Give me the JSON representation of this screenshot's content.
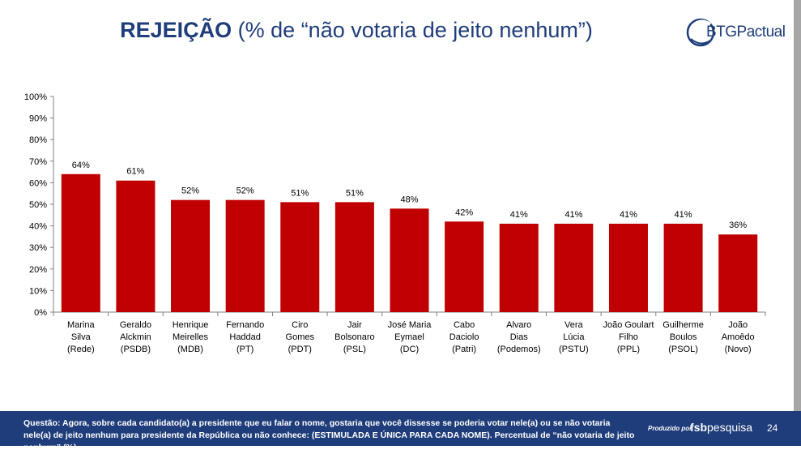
{
  "title": {
    "bold": "REJEIÇÃO",
    "rest": "(% de “não votaria de jeito nenhum”)"
  },
  "logo": {
    "text": "BTGPactual"
  },
  "chart_data": {
    "type": "bar",
    "title": "REJEIÇÃO (% de “não votaria de jeito nenhum”)",
    "ylim": [
      0,
      100
    ],
    "yticks": [
      "0%",
      "10%",
      "20%",
      "30%",
      "40%",
      "50%",
      "60%",
      "70%",
      "80%",
      "90%",
      "100%"
    ],
    "grid": false,
    "bar_color": "#c00000",
    "categories": [
      [
        "Marina",
        "Silva",
        "(Rede)"
      ],
      [
        "Geraldo",
        "Alckmin",
        "(PSDB)"
      ],
      [
        "Henrique",
        "Meirelles",
        "(MDB)"
      ],
      [
        "Fernando",
        "Haddad",
        "(PT)"
      ],
      [
        "Ciro",
        "Gomes",
        "(PDT)"
      ],
      [
        "Jair",
        "Bolsonaro",
        "(PSL)"
      ],
      [
        "José Maria",
        "Eymael",
        "(DC)"
      ],
      [
        "Cabo",
        "Daciolo",
        "(Patri)"
      ],
      [
        "Alvaro",
        "Dias",
        "(Podemos)"
      ],
      [
        "Vera",
        "Lúcia",
        "(PSTU)"
      ],
      [
        "João Goulart",
        "Filho",
        "(PPL)"
      ],
      [
        "Guilherme",
        "Boulos",
        "(PSOL)"
      ],
      [
        "João",
        "Amoêdo",
        "(Novo)"
      ]
    ],
    "values": [
      64,
      61,
      52,
      52,
      51,
      51,
      48,
      42,
      41,
      41,
      41,
      41,
      36
    ],
    "data_labels": [
      "64%",
      "61%",
      "52%",
      "52%",
      "51%",
      "51%",
      "48%",
      "42%",
      "41%",
      "41%",
      "41%",
      "41%",
      "36%"
    ]
  },
  "footer": {
    "question_label": "Questão:",
    "question_text": "Agora, sobre cada candidato(a) a presidente que eu falar o nome, gostaria que você dissesse se poderia votar nele(a) ou se não votaria nele(a) de jeito nenhum para presidente da República ou não conhece: (ESTIMULADA E ÚNICA PARA CADA NOME). Percentual de “não votaria de jeito nenhum” (%)",
    "produced_by": "Produzido por",
    "producer_bold": "fsb",
    "producer_rest": "pesquisa",
    "page_number": "24"
  },
  "colors": {
    "navy": "#1f3d7a",
    "bar": "#c00000",
    "side_bar": "#a6a6a6"
  }
}
